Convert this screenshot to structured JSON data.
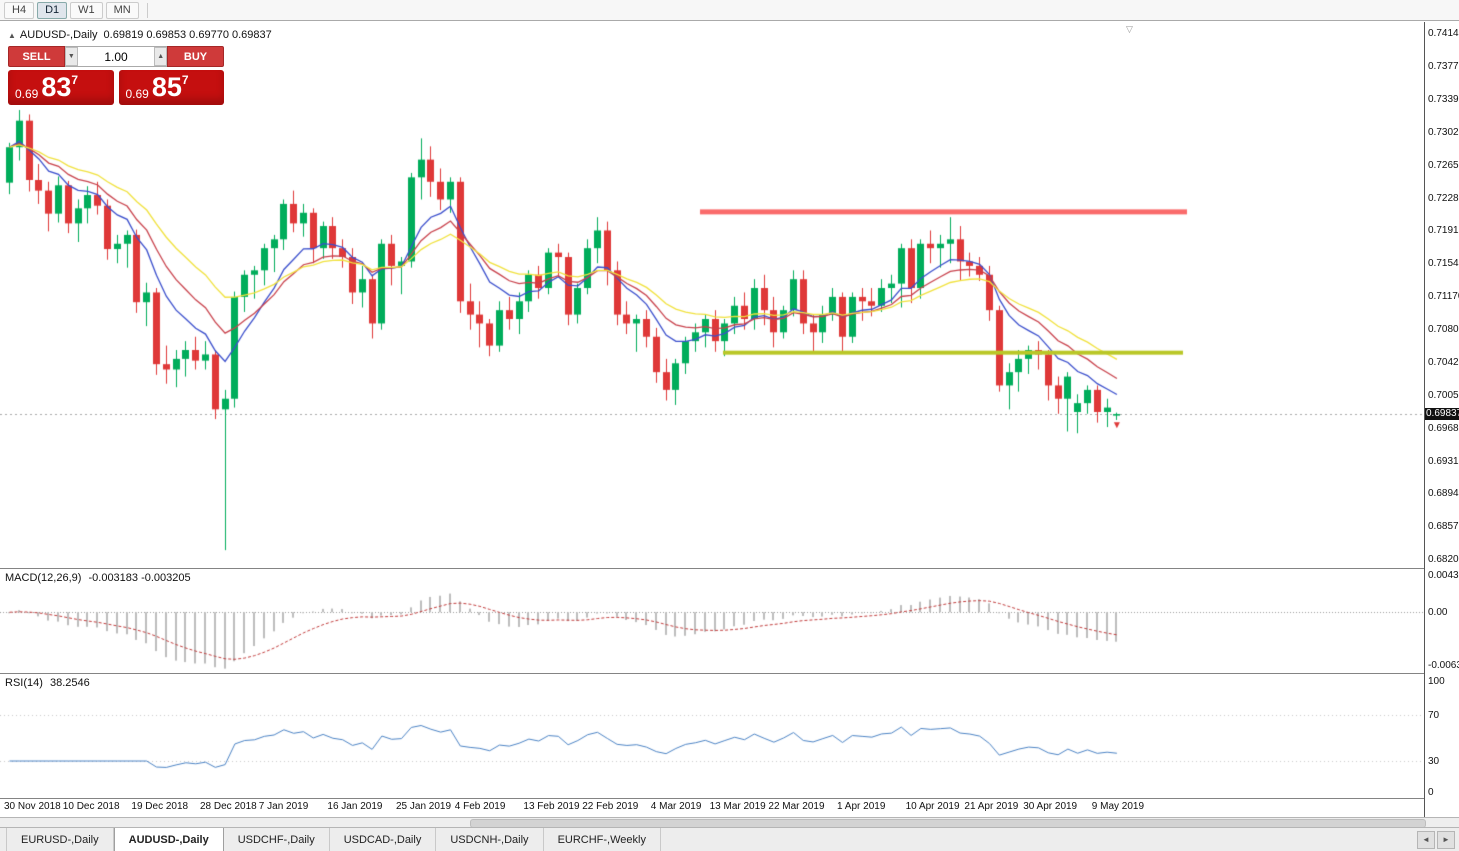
{
  "toolbar": {
    "timeframes": [
      {
        "label": "H4",
        "active": false
      },
      {
        "label": "D1",
        "active": true
      },
      {
        "label": "W1",
        "active": false
      },
      {
        "label": "MN",
        "active": false
      }
    ]
  },
  "chart_header": {
    "collapse_icon": "▲",
    "title": "AUDUSD-,Daily",
    "ohlc": "0.69819 0.69853 0.69770 0.69837"
  },
  "icons": {
    "shift_marker": "▽"
  },
  "trade_panel": {
    "sell": "SELL",
    "buy": "BUY",
    "volume": "1.00",
    "dropdown_icon": "▼",
    "up_icon": "▲",
    "bid": {
      "small": "0.69",
      "big": "83",
      "sup": "7"
    },
    "ask": {
      "small": "0.69",
      "big": "85",
      "sup": "7"
    }
  },
  "price_axis_labels": [
    "0.74140",
    "0.73770",
    "0.73390",
    "0.73020",
    "0.72650",
    "0.72280",
    "0.71910",
    "0.71540",
    "0.71170",
    "0.70800",
    "0.70420",
    "0.70050",
    "0.69680",
    "0.69310",
    "0.68940",
    "0.68570",
    "0.68200"
  ],
  "current_price_tag": "0.69837",
  "chart_data": {
    "type": "candlestick",
    "symbol": "AUDUSD",
    "period": "Daily",
    "y_range": [
      0.682,
      0.7414
    ],
    "candle_up_color": "#00ad5b",
    "candle_down_color": "#df3838",
    "candles": [
      [
        0.7245,
        0.729,
        0.7232,
        0.7285
      ],
      [
        0.7285,
        0.7327,
        0.727,
        0.7315
      ],
      [
        0.7315,
        0.7322,
        0.7235,
        0.7248
      ],
      [
        0.7248,
        0.7266,
        0.7221,
        0.7236
      ],
      [
        0.7236,
        0.7246,
        0.719,
        0.721
      ],
      [
        0.721,
        0.7252,
        0.72,
        0.7242
      ],
      [
        0.7242,
        0.7247,
        0.7188,
        0.7199
      ],
      [
        0.7199,
        0.7226,
        0.7178,
        0.7216
      ],
      [
        0.7216,
        0.7241,
        0.7199,
        0.7231
      ],
      [
        0.7231,
        0.7246,
        0.7209,
        0.7219
      ],
      [
        0.7219,
        0.7226,
        0.7158,
        0.717
      ],
      [
        0.717,
        0.7186,
        0.7154,
        0.7176
      ],
      [
        0.7176,
        0.7191,
        0.7149,
        0.7186
      ],
      [
        0.7186,
        0.7192,
        0.7098,
        0.711
      ],
      [
        0.711,
        0.7132,
        0.7083,
        0.7121
      ],
      [
        0.7121,
        0.7126,
        0.7028,
        0.704
      ],
      [
        0.704,
        0.7061,
        0.7018,
        0.7034
      ],
      [
        0.7034,
        0.7056,
        0.7014,
        0.7046
      ],
      [
        0.7046,
        0.7066,
        0.7026,
        0.7056
      ],
      [
        0.7056,
        0.7071,
        0.7034,
        0.7044
      ],
      [
        0.7044,
        0.7066,
        0.7034,
        0.7051
      ],
      [
        0.7051,
        0.7056,
        0.6978,
        0.6989
      ],
      [
        0.6989,
        0.7011,
        0.683,
        0.7001
      ],
      [
        0.7001,
        0.7122,
        0.6991,
        0.7116
      ],
      [
        0.7116,
        0.7146,
        0.7099,
        0.7141
      ],
      [
        0.7141,
        0.7151,
        0.7114,
        0.7146
      ],
      [
        0.7146,
        0.7176,
        0.7129,
        0.7171
      ],
      [
        0.7171,
        0.7186,
        0.7144,
        0.7181
      ],
      [
        0.7181,
        0.7226,
        0.7169,
        0.7221
      ],
      [
        0.7221,
        0.7236,
        0.7189,
        0.7199
      ],
      [
        0.7199,
        0.7221,
        0.7184,
        0.7211
      ],
      [
        0.7211,
        0.7216,
        0.7154,
        0.7171
      ],
      [
        0.7171,
        0.7201,
        0.7159,
        0.7196
      ],
      [
        0.7196,
        0.7206,
        0.7159,
        0.7171
      ],
      [
        0.7171,
        0.7181,
        0.7149,
        0.7161
      ],
      [
        0.7161,
        0.7171,
        0.7108,
        0.7121
      ],
      [
        0.7121,
        0.7151,
        0.7104,
        0.7136
      ],
      [
        0.7136,
        0.7141,
        0.7069,
        0.7086
      ],
      [
        0.7086,
        0.7181,
        0.7079,
        0.7176
      ],
      [
        0.7176,
        0.7186,
        0.7129,
        0.7151
      ],
      [
        0.7151,
        0.7161,
        0.7119,
        0.7156
      ],
      [
        0.7156,
        0.7256,
        0.7149,
        0.7251
      ],
      [
        0.7251,
        0.7295,
        0.7226,
        0.7271
      ],
      [
        0.7271,
        0.7286,
        0.7229,
        0.7246
      ],
      [
        0.7246,
        0.7261,
        0.7214,
        0.7226
      ],
      [
        0.7226,
        0.7251,
        0.7211,
        0.7246
      ],
      [
        0.7246,
        0.7251,
        0.7098,
        0.7111
      ],
      [
        0.7111,
        0.7131,
        0.7079,
        0.7096
      ],
      [
        0.7096,
        0.7111,
        0.7059,
        0.7086
      ],
      [
        0.7086,
        0.7091,
        0.7049,
        0.7061
      ],
      [
        0.7061,
        0.7111,
        0.7054,
        0.7101
      ],
      [
        0.7101,
        0.7116,
        0.7079,
        0.7091
      ],
      [
        0.7091,
        0.7121,
        0.7074,
        0.7111
      ],
      [
        0.7111,
        0.7146,
        0.7099,
        0.7141
      ],
      [
        0.7141,
        0.7151,
        0.7114,
        0.7126
      ],
      [
        0.7126,
        0.7171,
        0.7119,
        0.7166
      ],
      [
        0.7166,
        0.7176,
        0.7139,
        0.7161
      ],
      [
        0.7161,
        0.7166,
        0.7084,
        0.7096
      ],
      [
        0.7096,
        0.7131,
        0.7086,
        0.7126
      ],
      [
        0.7126,
        0.7181,
        0.7119,
        0.7171
      ],
      [
        0.7171,
        0.7206,
        0.7154,
        0.7191
      ],
      [
        0.7191,
        0.7201,
        0.7129,
        0.7146
      ],
      [
        0.7146,
        0.7156,
        0.7084,
        0.7096
      ],
      [
        0.7096,
        0.7111,
        0.7074,
        0.7086
      ],
      [
        0.7086,
        0.7096,
        0.7054,
        0.7091
      ],
      [
        0.7091,
        0.7101,
        0.7059,
        0.7071
      ],
      [
        0.7071,
        0.7081,
        0.7019,
        0.7031
      ],
      [
        0.7031,
        0.7046,
        0.6999,
        0.7011
      ],
      [
        0.7011,
        0.7046,
        0.6994,
        0.7041
      ],
      [
        0.7041,
        0.7071,
        0.7029,
        0.7066
      ],
      [
        0.7066,
        0.7086,
        0.7054,
        0.7076
      ],
      [
        0.7076,
        0.7096,
        0.7059,
        0.7091
      ],
      [
        0.7091,
        0.7101,
        0.7054,
        0.7066
      ],
      [
        0.7066,
        0.7091,
        0.7049,
        0.7086
      ],
      [
        0.7086,
        0.7116,
        0.7074,
        0.7106
      ],
      [
        0.7106,
        0.7121,
        0.7079,
        0.7091
      ],
      [
        0.7091,
        0.7136,
        0.7079,
        0.7126
      ],
      [
        0.7126,
        0.7141,
        0.7084,
        0.7101
      ],
      [
        0.7101,
        0.7116,
        0.7059,
        0.7076
      ],
      [
        0.7076,
        0.7106,
        0.7069,
        0.7101
      ],
      [
        0.7101,
        0.7146,
        0.7094,
        0.7136
      ],
      [
        0.7136,
        0.7146,
        0.7074,
        0.7086
      ],
      [
        0.7086,
        0.7096,
        0.7054,
        0.7076
      ],
      [
        0.7076,
        0.7106,
        0.7064,
        0.7096
      ],
      [
        0.7096,
        0.7126,
        0.7089,
        0.7116
      ],
      [
        0.7116,
        0.7121,
        0.7054,
        0.7071
      ],
      [
        0.7071,
        0.7121,
        0.7064,
        0.7116
      ],
      [
        0.7116,
        0.7126,
        0.7089,
        0.7111
      ],
      [
        0.7111,
        0.7126,
        0.7094,
        0.7106
      ],
      [
        0.7106,
        0.7136,
        0.7099,
        0.7126
      ],
      [
        0.7126,
        0.7141,
        0.7109,
        0.7131
      ],
      [
        0.7131,
        0.7176,
        0.7104,
        0.7171
      ],
      [
        0.7171,
        0.7181,
        0.7109,
        0.7126
      ],
      [
        0.7126,
        0.7181,
        0.7114,
        0.7176
      ],
      [
        0.7176,
        0.7191,
        0.7154,
        0.7171
      ],
      [
        0.7171,
        0.7186,
        0.7149,
        0.7176
      ],
      [
        0.7176,
        0.7206,
        0.7154,
        0.7181
      ],
      [
        0.7181,
        0.7196,
        0.7134,
        0.7156
      ],
      [
        0.7156,
        0.7166,
        0.7139,
        0.7151
      ],
      [
        0.7151,
        0.7161,
        0.7134,
        0.7141
      ],
      [
        0.7141,
        0.7151,
        0.7089,
        0.7101
      ],
      [
        0.7101,
        0.7106,
        0.7009,
        0.7016
      ],
      [
        0.7016,
        0.7041,
        0.6989,
        0.7031
      ],
      [
        0.7031,
        0.7056,
        0.7009,
        0.7046
      ],
      [
        0.7046,
        0.7061,
        0.7029,
        0.7056
      ],
      [
        0.7056,
        0.7066,
        0.7034,
        0.7051
      ],
      [
        0.7051,
        0.7056,
        0.6999,
        0.7016
      ],
      [
        0.7016,
        0.7026,
        0.6984,
        0.7001
      ],
      [
        0.7001,
        0.7031,
        0.6964,
        0.7026
      ],
      [
        0.6986,
        0.7006,
        0.6962,
        0.6996
      ],
      [
        0.6996,
        0.7016,
        0.6984,
        0.7011
      ],
      [
        0.7011,
        0.7016,
        0.6974,
        0.6986
      ],
      [
        0.6986,
        0.7001,
        0.6969,
        0.6991
      ],
      [
        0.69819,
        0.69853,
        0.6977,
        0.69837
      ]
    ],
    "date_labels": [
      {
        "label": "30 Nov 2018",
        "i": 0
      },
      {
        "label": "10 Dec 2018",
        "i": 6
      },
      {
        "label": "19 Dec 2018",
        "i": 13
      },
      {
        "label": "28 Dec 2018",
        "i": 20
      },
      {
        "label": "7 Jan 2019",
        "i": 26
      },
      {
        "label": "16 Jan 2019",
        "i": 33
      },
      {
        "label": "25 Jan 2019",
        "i": 40
      },
      {
        "label": "4 Feb 2019",
        "i": 46
      },
      {
        "label": "13 Feb 2019",
        "i": 53
      },
      {
        "label": "22 Feb 2019",
        "i": 59
      },
      {
        "label": "4 Mar 2019",
        "i": 66
      },
      {
        "label": "13 Mar 2019",
        "i": 72
      },
      {
        "label": "22 Mar 2019",
        "i": 78
      },
      {
        "label": "1 Apr 2019",
        "i": 85
      },
      {
        "label": "10 Apr 2019",
        "i": 92
      },
      {
        "label": "21 Apr 2019",
        "i": 98
      },
      {
        "label": "30 Apr 2019",
        "i": 104
      },
      {
        "label": "9 May 2019",
        "i": 111
      }
    ],
    "moving_averages": [
      {
        "name": "fast",
        "method": "ema",
        "period": 8,
        "color": "#3a4ecc"
      },
      {
        "name": "medium",
        "method": "ema",
        "period": 13,
        "color": "#c8414b"
      },
      {
        "name": "slow",
        "method": "ema",
        "period": 21,
        "color": "#f0e13c"
      }
    ],
    "hlines": [
      {
        "name": "resistance-line",
        "price": 0.7212,
        "color": "#fa6b6b",
        "thickness": 5,
        "x_from": 700,
        "x_to": 1187
      },
      {
        "name": "support-line",
        "price": 0.7053,
        "color": "#b9c727",
        "thickness": 4,
        "x_from": 723,
        "x_to": 1183
      }
    ],
    "last_price_line": {
      "price": 0.69837,
      "color": "#a8a8a8"
    },
    "sell_marker": {
      "index": 113,
      "price": 0.6971,
      "color": "#df3838"
    },
    "indicators": {
      "macd": {
        "label": "MACD(12,26,9)",
        "values": "-0.003183 -0.003205",
        "fast": 12,
        "slow": 26,
        "signal": 9,
        "y_max": 0.004331,
        "y_min": -0.00637,
        "axis": [
          "0.004331",
          "0.00",
          "-0.00637"
        ],
        "hist_color": "#bdbdbd",
        "signal_color": "#c03a3a"
      },
      "rsi": {
        "label": "RSI(14)",
        "value": "38.2546",
        "period": 14,
        "levels": [
          70,
          30
        ],
        "axis": [
          100,
          70,
          30,
          0
        ],
        "color": "#4a82c4",
        "y_max": 100,
        "y_min": 0
      }
    }
  },
  "tabs": {
    "items": [
      {
        "label": "EURUSD-,Daily",
        "active": false
      },
      {
        "label": "AUDUSD-,Daily",
        "active": true
      },
      {
        "label": "USDCHF-,Daily",
        "active": false
      },
      {
        "label": "USDCAD-,Daily",
        "active": false
      },
      {
        "label": "USDCNH-,Daily",
        "active": false
      },
      {
        "label": "EURCHF-,Weekly",
        "active": false
      }
    ],
    "scroll_left": "◄",
    "scroll_right": "►"
  }
}
